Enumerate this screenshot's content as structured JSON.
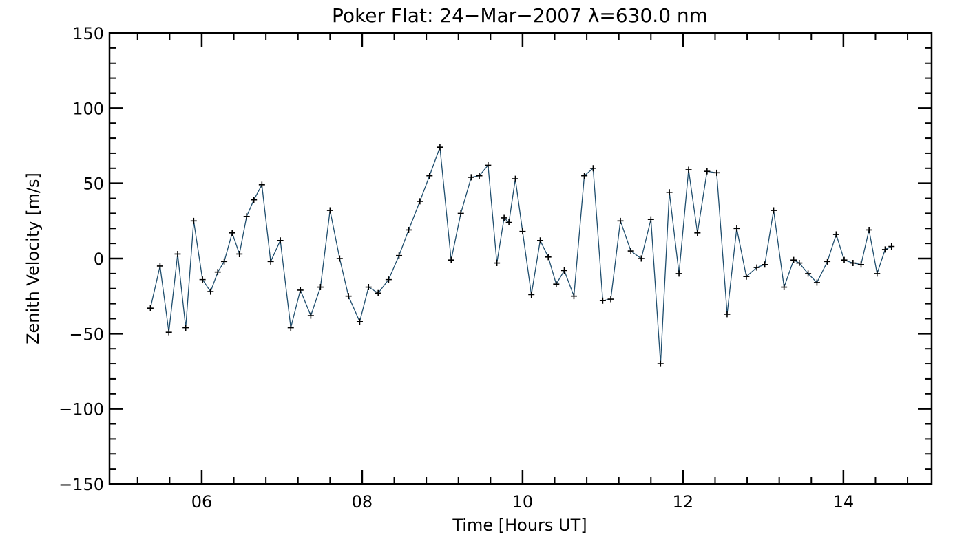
{
  "chart_data": {
    "type": "line",
    "title": "Poker Flat: 24−Mar−2007 λ=630.0 nm",
    "xlabel": "Time [Hours UT]",
    "ylabel": "Zenith Velocity [m/s]",
    "xlim": [
      4.85,
      15.1
    ],
    "ylim": [
      -150,
      150
    ],
    "x_ticks": [
      {
        "value": 6,
        "label": "06"
      },
      {
        "value": 8,
        "label": "08"
      },
      {
        "value": 10,
        "label": "10"
      },
      {
        "value": 12,
        "label": "12"
      },
      {
        "value": 14,
        "label": "14"
      }
    ],
    "y_ticks": [
      {
        "value": -150,
        "label": "−150"
      },
      {
        "value": -100,
        "label": "−100"
      },
      {
        "value": -50,
        "label": "−50"
      },
      {
        "value": 0,
        "label": "0"
      },
      {
        "value": 50,
        "label": "50"
      },
      {
        "value": 100,
        "label": "100"
      },
      {
        "value": 150,
        "label": "150"
      }
    ],
    "series": [
      {
        "name": "zenith_velocity",
        "color": "#1f4e6e",
        "marker": "plus",
        "x": [
          5.36,
          5.48,
          5.59,
          5.7,
          5.8,
          5.9,
          6.01,
          6.11,
          6.2,
          6.28,
          6.38,
          6.47,
          6.56,
          6.65,
          6.75,
          6.86,
          6.98,
          7.11,
          7.23,
          7.36,
          7.48,
          7.6,
          7.72,
          7.83,
          7.97,
          8.08,
          8.2,
          8.33,
          8.46,
          8.58,
          8.72,
          8.84,
          8.97,
          9.11,
          9.23,
          9.36,
          9.46,
          9.57,
          9.68,
          9.77,
          9.83,
          9.91,
          10.0,
          10.11,
          10.22,
          10.32,
          10.42,
          10.52,
          10.64,
          10.77,
          10.88,
          11.0,
          11.1,
          11.22,
          11.35,
          11.48,
          11.6,
          11.72,
          11.83,
          11.95,
          12.07,
          12.18,
          12.3,
          12.42,
          12.55,
          12.67,
          12.79,
          12.92,
          13.02,
          13.13,
          13.26,
          13.38,
          13.45,
          13.56,
          13.67,
          13.8,
          13.91,
          14.01,
          14.12,
          14.22,
          14.32,
          14.42,
          14.52,
          14.6
        ],
        "y": [
          -33,
          -5,
          -49,
          3,
          -46,
          25,
          -14,
          -22,
          -9,
          -2,
          17,
          3,
          28,
          39,
          49,
          -2,
          12,
          -46,
          -21,
          -38,
          -19,
          32,
          0,
          -25,
          -42,
          -19,
          -23,
          -14,
          2,
          19,
          38,
          55,
          74,
          -1,
          30,
          54,
          55,
          62,
          -3,
          27,
          24,
          53,
          18,
          -24,
          12,
          1,
          -17,
          -8,
          -25,
          55,
          60,
          -28,
          -27,
          25,
          5,
          0,
          26,
          -70,
          44,
          -10,
          59,
          17,
          58,
          57,
          -37,
          20,
          -12,
          -6,
          -4,
          32,
          -19,
          -1,
          -3,
          -10,
          -16,
          -2,
          16,
          -1,
          -3,
          -4,
          19,
          -10,
          6,
          8
        ]
      }
    ]
  }
}
